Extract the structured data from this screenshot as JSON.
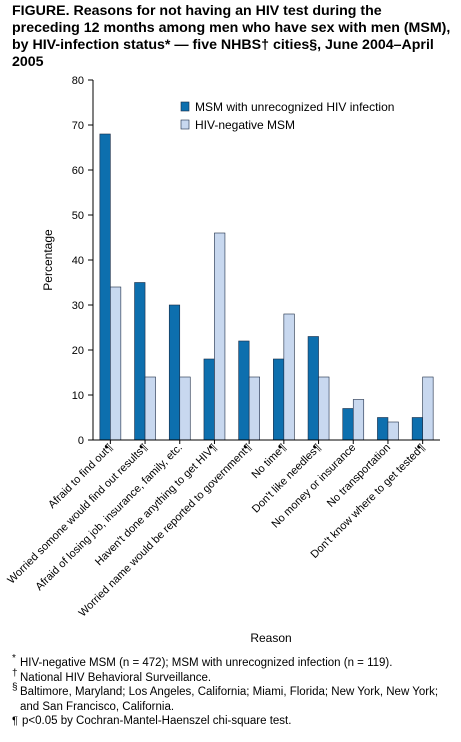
{
  "title": "FIGURE. Reasons for not having an HIV test during the preceding 12 months among men who have sex with men (MSM), by HIV-infection status* — five NHBS† cities§, June 2004–April 2005",
  "colors": {
    "series1": "#0d6fae",
    "series2": "#c8d8ef",
    "stroke": "#1a2b45",
    "axis": "#000000"
  },
  "chart_data": {
    "type": "bar",
    "title": "",
    "xlabel": "Reason",
    "ylabel": "Percentage",
    "ylim": [
      0,
      80
    ],
    "yticks": [
      0,
      10,
      20,
      30,
      40,
      50,
      60,
      70,
      80
    ],
    "grid": false,
    "legend_position": "top-right",
    "categories": [
      "Afraid to find out¶",
      "Worried somone would find out results¶",
      "Afraid of losing job, insurance, family, etc.",
      "Haven't done anything to get HIV¶",
      "Worried name would be reported to government¶",
      "No time¶",
      "Don't like needles¶",
      "No money or insurance",
      "No transportation",
      "Don't know where to get tested¶"
    ],
    "series": [
      {
        "name": "MSM with unrecognized HIV infection",
        "values": [
          68,
          35,
          30,
          18,
          22,
          18,
          23,
          7,
          5,
          5
        ]
      },
      {
        "name": "HIV-negative MSM",
        "values": [
          34,
          14,
          14,
          46,
          14,
          28,
          14,
          9,
          4,
          14
        ]
      }
    ]
  },
  "footnotes": [
    {
      "symbol": "*",
      "text": "HIV-negative MSM (n = 472); MSM with unrecognized infection (n = 119)."
    },
    {
      "symbol": "†",
      "text": "National HIV Behavioral Surveillance."
    },
    {
      "symbol": "§",
      "text": "Baltimore, Maryland; Los Angeles, California; Miami, Florida; New York, New York; and San Francisco, California."
    },
    {
      "symbol": "¶",
      "text": "p<0.05 by Cochran-Mantel-Haenszel chi-square test."
    }
  ]
}
